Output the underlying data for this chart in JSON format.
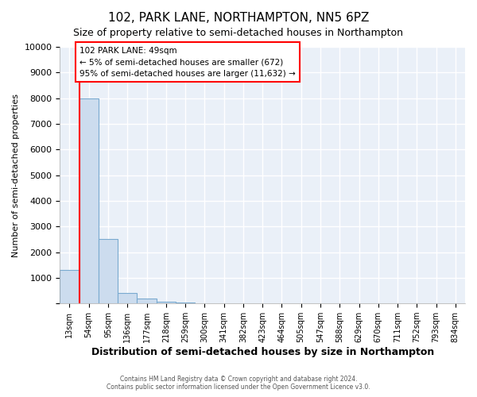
{
  "title": "102, PARK LANE, NORTHAMPTON, NN5 6PZ",
  "subtitle": "Size of property relative to semi-detached houses in Northampton",
  "xlabel": "Distribution of semi-detached houses by size in Northampton",
  "ylabel": "Number of semi-detached properties",
  "categories": [
    "13sqm",
    "54sqm",
    "95sqm",
    "136sqm",
    "177sqm",
    "218sqm",
    "259sqm",
    "300sqm",
    "341sqm",
    "382sqm",
    "423sqm",
    "464sqm",
    "505sqm",
    "547sqm",
    "588sqm",
    "629sqm",
    "670sqm",
    "711sqm",
    "752sqm",
    "793sqm",
    "834sqm"
  ],
  "values": [
    1300,
    8000,
    2500,
    400,
    180,
    70,
    30,
    0,
    0,
    0,
    0,
    0,
    0,
    0,
    0,
    0,
    0,
    0,
    0,
    0,
    0
  ],
  "bar_color": "#ccdcee",
  "bar_edge_color": "#7aaad0",
  "plot_bg_color": "#eaf0f8",
  "fig_bg_color": "#ffffff",
  "grid_color": "#ffffff",
  "ylim": [
    0,
    10000
  ],
  "yticks": [
    0,
    1000,
    2000,
    3000,
    4000,
    5000,
    6000,
    7000,
    8000,
    9000,
    10000
  ],
  "red_line_x": 0.5,
  "annotation_text_line1": "102 PARK LANE: 49sqm",
  "annotation_text_line2": "← 5% of semi-detached houses are smaller (672)",
  "annotation_text_line3": "95% of semi-detached houses are larger (11,632) →",
  "footer_line1": "Contains HM Land Registry data © Crown copyright and database right 2024.",
  "footer_line2": "Contains public sector information licensed under the Open Government Licence v3.0."
}
